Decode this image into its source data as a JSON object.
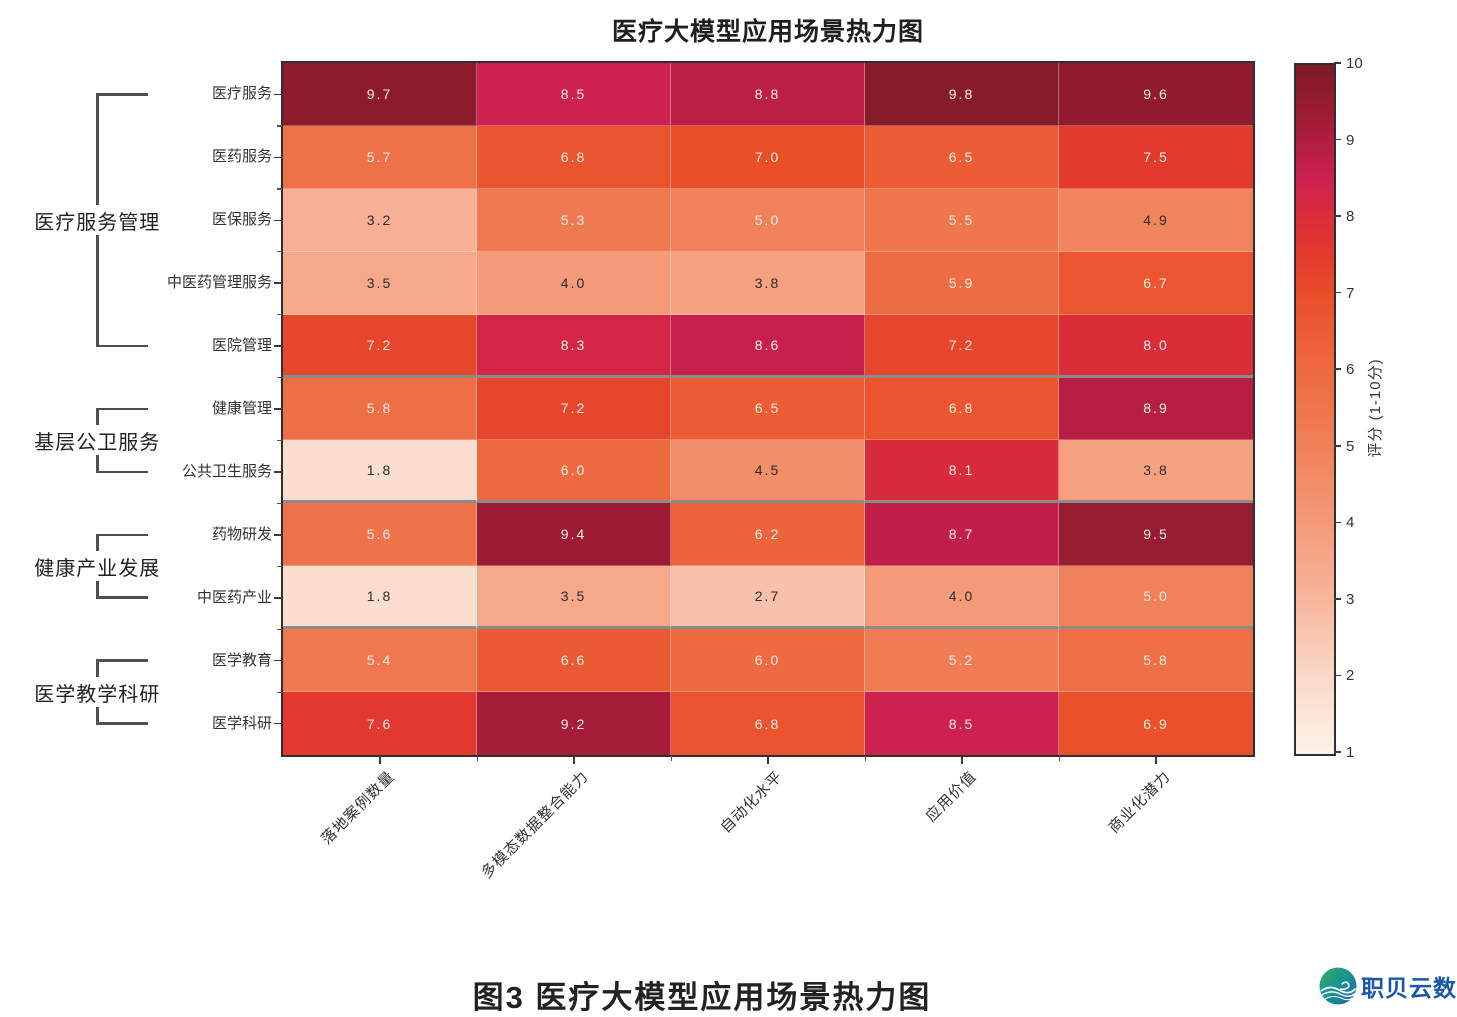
{
  "chart_data": {
    "type": "heatmap",
    "title": "医疗大模型应用场景热力图",
    "rows": [
      "医疗服务",
      "医药服务",
      "医保服务",
      "中医药管理服务",
      "医院管理",
      "健康管理",
      "公共卫生服务",
      "药物研发",
      "中医药产业",
      "医学教育",
      "医学科研"
    ],
    "columns": [
      "落地案例数量",
      "多模态数据整合能力",
      "自动化水平",
      "应用价值",
      "商业化潜力"
    ],
    "row_groups": [
      {
        "label": "医疗服务管理",
        "start": 0,
        "end": 4
      },
      {
        "label": "基层公卫服务",
        "start": 5,
        "end": 6
      },
      {
        "label": "健康产业发展",
        "start": 7,
        "end": 8
      },
      {
        "label": "医学教学科研",
        "start": 9,
        "end": 10
      }
    ],
    "values": [
      [
        9.7,
        8.5,
        8.8,
        9.8,
        9.6
      ],
      [
        5.7,
        6.8,
        7.0,
        6.5,
        7.5
      ],
      [
        3.2,
        5.3,
        5.0,
        5.5,
        4.9
      ],
      [
        3.5,
        4.0,
        3.8,
        5.9,
        6.7
      ],
      [
        7.2,
        8.3,
        8.6,
        7.2,
        8.0
      ],
      [
        5.8,
        7.2,
        6.5,
        6.8,
        8.9
      ],
      [
        1.8,
        6.0,
        4.5,
        8.1,
        3.8
      ],
      [
        5.6,
        9.4,
        6.2,
        8.7,
        9.5
      ],
      [
        1.8,
        3.5,
        2.7,
        4.0,
        5.0
      ],
      [
        5.4,
        6.6,
        6.0,
        5.2,
        5.8
      ],
      [
        7.6,
        9.2,
        6.8,
        8.5,
        6.9
      ]
    ],
    "value_range": [
      1,
      10
    ],
    "colorbar": {
      "label": "评分 (1-10分)",
      "ticks": [
        1,
        2,
        3,
        4,
        5,
        6,
        7,
        8,
        9,
        10
      ]
    },
    "colors": {
      "stops": [
        [
          1.0,
          "#fdf1e9"
        ],
        [
          2.0,
          "#fad9c9"
        ],
        [
          3.0,
          "#f8b69c"
        ],
        [
          4.0,
          "#f49a78"
        ],
        [
          5.0,
          "#f0815a"
        ],
        [
          6.0,
          "#ee6a40"
        ],
        [
          7.0,
          "#e94e29"
        ],
        [
          7.5,
          "#e23b2d"
        ],
        [
          8.0,
          "#db2d37"
        ],
        [
          8.5,
          "#cd2150"
        ],
        [
          9.0,
          "#b01d40"
        ],
        [
          9.5,
          "#961c31"
        ],
        [
          10.0,
          "#7c1a26"
        ]
      ],
      "light_text_threshold": 5,
      "text_light": "#fdeee8",
      "text_dark": "#2b2b2b",
      "separator_color": "#8b8b8b",
      "grid_color": "rgba(255,255,255,0.35)",
      "border_color": "#2f2f2f"
    },
    "legend_position": "right-colorbar",
    "grid": false
  },
  "caption": "图3 医疗大模型应用场景热力图",
  "logo": {
    "text": "职贝云数",
    "color": "#1a57a8"
  }
}
